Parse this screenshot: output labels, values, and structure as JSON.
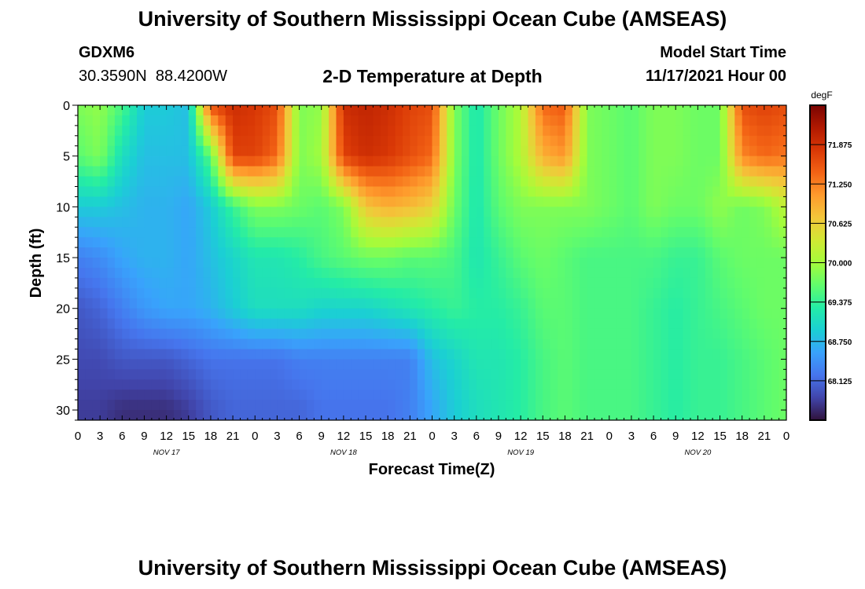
{
  "page": {
    "title": "University of Southern Mississippi Ocean Cube (AMSEAS)",
    "repeat_title": "University of Southern Mississippi Ocean Cube (AMSEAS)",
    "station": {
      "id": "GDXM6",
      "coords": "30.3590N  88.4200W"
    },
    "subtitle": "2-D Temperature at Depth",
    "model_start": {
      "label": "Model Start Time",
      "value": "11/17/2021 Hour 00"
    }
  },
  "chart_data": {
    "type": "heatmap",
    "title": "2-D Temperature at Depth",
    "xlabel": "Forecast Time(Z)",
    "ylabel": "Depth (ft)",
    "x_hours": [
      0,
      3,
      6,
      9,
      12,
      15,
      18,
      21,
      24,
      27,
      30,
      33,
      36,
      39,
      42,
      45,
      48,
      51,
      54,
      57,
      60,
      63,
      66,
      69,
      72,
      75,
      78,
      81,
      84,
      87,
      90,
      93,
      96
    ],
    "x_range": [
      0,
      96
    ],
    "x_tick_labels": [
      "0",
      "3",
      "6",
      "9",
      "12",
      "15",
      "18",
      "21",
      "0",
      "3",
      "6",
      "9",
      "12",
      "15",
      "18",
      "21",
      "0",
      "3",
      "6",
      "9",
      "12",
      "15",
      "18",
      "21",
      "0",
      "3",
      "6",
      "9",
      "12",
      "15",
      "18",
      "21",
      "0"
    ],
    "day_labels": [
      {
        "text": "NOV 17",
        "hour": 12
      },
      {
        "text": "NOV 18",
        "hour": 36
      },
      {
        "text": "NOV 19",
        "hour": 60
      },
      {
        "text": "NOV 20",
        "hour": 84
      }
    ],
    "y_range": [
      0,
      31
    ],
    "y_ticks": [
      0,
      5,
      10,
      15,
      20,
      25,
      30
    ],
    "y_tick_labels": [
      "0",
      "5",
      "10",
      "15",
      "20",
      "25",
      "30"
    ],
    "depths_ft": [
      0,
      5,
      10,
      15,
      20,
      25,
      30
    ],
    "temperature_degF": [
      [
        69.8,
        69.9,
        69.5,
        68.9,
        68.9,
        68.8,
        71.6,
        71.9,
        71.8,
        71.6,
        69.8,
        69.9,
        71.9,
        72.0,
        71.9,
        71.7,
        71.6,
        69.8,
        69.2,
        69.7,
        70.1,
        71.4,
        71.5,
        69.8,
        69.7,
        69.6,
        69.8,
        69.8,
        69.7,
        69.7,
        71.6,
        71.7,
        71.6
      ],
      [
        69.6,
        69.8,
        69.1,
        68.8,
        68.8,
        68.8,
        69.6,
        71.7,
        71.7,
        71.4,
        69.8,
        70.0,
        71.7,
        71.9,
        71.8,
        71.6,
        71.4,
        69.8,
        69.2,
        69.7,
        70.1,
        70.9,
        71.1,
        69.8,
        69.7,
        69.6,
        69.8,
        69.8,
        69.7,
        69.7,
        71.2,
        71.4,
        71.3
      ],
      [
        68.9,
        68.9,
        68.8,
        68.7,
        68.7,
        68.6,
        68.9,
        69.4,
        69.8,
        69.8,
        69.7,
        69.6,
        69.8,
        70.7,
        70.9,
        70.8,
        70.6,
        69.7,
        69.2,
        69.6,
        69.8,
        69.8,
        69.8,
        69.8,
        69.7,
        69.6,
        69.8,
        69.7,
        69.7,
        69.9,
        69.7,
        69.8,
        70.2
      ],
      [
        68.3,
        68.4,
        68.6,
        68.7,
        68.7,
        68.6,
        68.8,
        69.0,
        69.2,
        69.2,
        69.3,
        69.5,
        69.6,
        69.7,
        69.7,
        69.6,
        69.6,
        69.5,
        69.2,
        69.4,
        69.6,
        69.7,
        69.6,
        69.5,
        69.5,
        69.5,
        69.5,
        69.4,
        69.4,
        69.6,
        69.7,
        69.7,
        69.7
      ],
      [
        68.0,
        68.1,
        68.3,
        68.5,
        68.6,
        68.6,
        68.7,
        68.9,
        69.1,
        69.1,
        69.1,
        69.0,
        69.0,
        69.0,
        69.1,
        69.2,
        69.3,
        69.4,
        69.3,
        69.3,
        69.4,
        69.6,
        69.6,
        69.5,
        69.5,
        69.5,
        69.4,
        69.3,
        69.4,
        69.5,
        69.6,
        69.7,
        69.7
      ],
      [
        67.9,
        67.9,
        68.0,
        68.0,
        68.0,
        68.1,
        68.2,
        68.2,
        68.2,
        68.2,
        68.3,
        68.3,
        68.3,
        68.3,
        68.3,
        68.3,
        68.8,
        69.0,
        69.2,
        69.2,
        69.3,
        69.5,
        69.6,
        69.5,
        69.5,
        69.5,
        69.4,
        69.3,
        69.4,
        69.4,
        69.5,
        69.6,
        69.7
      ],
      [
        67.8,
        67.8,
        67.7,
        67.7,
        67.7,
        67.8,
        68.0,
        68.1,
        68.1,
        68.1,
        68.1,
        68.2,
        68.2,
        68.2,
        68.2,
        68.3,
        68.6,
        68.9,
        69.1,
        69.2,
        69.3,
        69.5,
        69.6,
        69.5,
        69.5,
        69.5,
        69.4,
        69.3,
        69.4,
        69.4,
        69.5,
        69.6,
        69.7
      ]
    ],
    "colorbar": {
      "unit": "degF",
      "range": [
        67.5,
        72.5
      ],
      "tick_values": [
        71.875,
        71.25,
        70.625,
        70.0,
        69.375,
        68.75,
        68.125
      ],
      "tick_labels": [
        "71.875",
        "71.250",
        "70.625",
        "70.000",
        "69.375",
        "68.750",
        "68.125"
      ],
      "colors": [
        "#30123b",
        "#4145ab",
        "#4675ed",
        "#39a2fc",
        "#1bcfd4",
        "#24eca6",
        "#61fc6c",
        "#a4fc3b",
        "#d1e834",
        "#f3c63a",
        "#fe9b2d",
        "#f36315",
        "#d93806",
        "#b11901",
        "#7a0402"
      ]
    }
  }
}
